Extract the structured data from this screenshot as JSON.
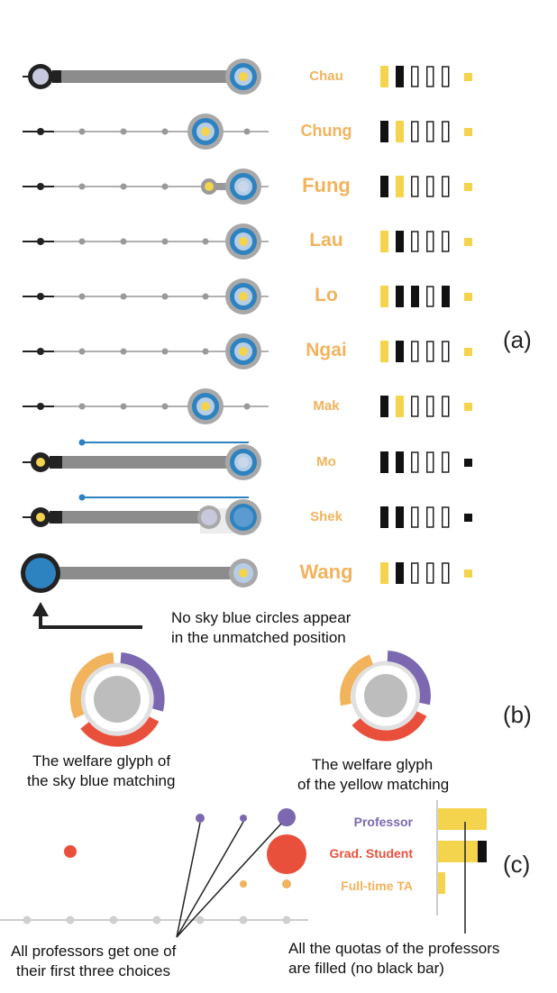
{
  "figure": {
    "panel_a": {
      "label": "(a)",
      "rows": [
        {
          "name": "Chau",
          "quota": [
            "yellow",
            "black",
            "empty",
            "empty",
            "empty"
          ],
          "square": "yellow"
        },
        {
          "name": "Chung",
          "quota": [
            "black",
            "yellow",
            "empty",
            "empty",
            "empty"
          ],
          "square": "yellow"
        },
        {
          "name": "Fung",
          "quota": [
            "black",
            "yellow",
            "empty",
            "empty",
            "empty"
          ],
          "square": "yellow"
        },
        {
          "name": "Lau",
          "quota": [
            "yellow",
            "black",
            "empty",
            "empty",
            "empty"
          ],
          "square": "yellow"
        },
        {
          "name": "Lo",
          "quota": [
            "yellow",
            "black",
            "black",
            "empty",
            "black"
          ],
          "square": "yellow"
        },
        {
          "name": "Ngai",
          "quota": [
            "yellow",
            "black",
            "empty",
            "empty",
            "empty"
          ],
          "square": "yellow"
        },
        {
          "name": "Mak",
          "quota": [
            "black",
            "yellow",
            "empty",
            "empty",
            "empty"
          ],
          "square": "yellow"
        },
        {
          "name": "Mo",
          "quota": [
            "black",
            "black",
            "empty",
            "empty",
            "empty"
          ],
          "square": "black"
        },
        {
          "name": "Shek",
          "quota": [
            "black",
            "black",
            "empty",
            "empty",
            "empty"
          ],
          "square": "black"
        },
        {
          "name": "Wang",
          "quota": [
            "yellow",
            "black",
            "empty",
            "empty",
            "empty"
          ],
          "square": "yellow"
        }
      ],
      "annotation_line1": "No sky blue circles appear",
      "annotation_line2": "in the unmatched position"
    },
    "panel_b": {
      "label": "(b)",
      "glyph_left_caption_line1": "The welfare glyph of",
      "glyph_left_caption_line2": "the sky blue matching",
      "glyph_right_caption_line1": "The welfare glyph",
      "glyph_right_caption_line2": "of the yellow matching"
    },
    "panel_c": {
      "label": "(c)",
      "legend": [
        {
          "label": "Professor",
          "color": "#7b68b0"
        },
        {
          "label": "Grad. Student",
          "color": "#e9503c"
        },
        {
          "label": "Full-time TA",
          "color": "#f2b35d"
        }
      ],
      "caption_left_line1": "All professors get one of",
      "caption_left_line2": "their first three choices",
      "caption_right_line1": "All the quotas of the professors",
      "caption_right_line2": "are filled (no black bar)"
    },
    "colors": {
      "sky_blue": "#2d82c0",
      "yellow": "#f4d44d",
      "gray": "#8c8c8c",
      "name_orange": "#f2b35d",
      "professor": "#7b68b0",
      "grad_student": "#e9503c",
      "fulltime_ta": "#f2b35d"
    }
  }
}
